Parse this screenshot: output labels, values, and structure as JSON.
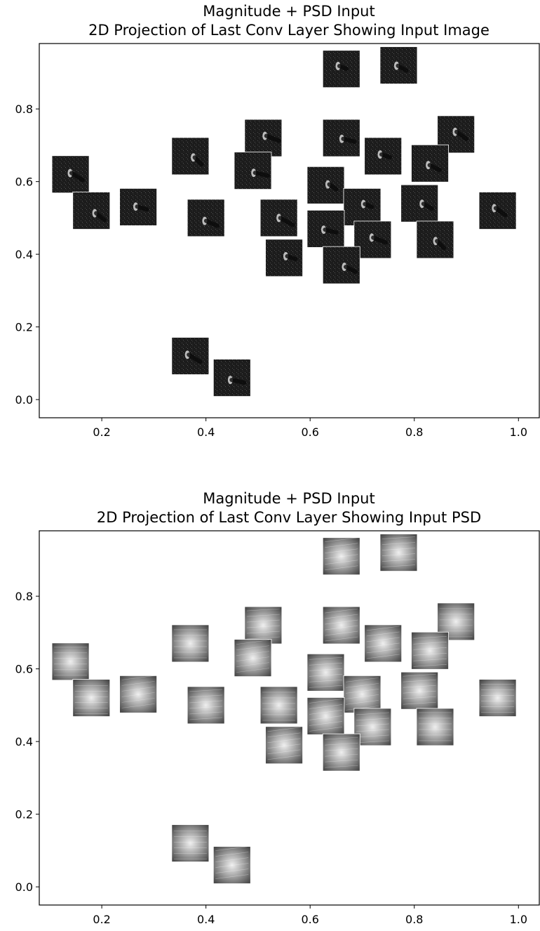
{
  "chart_data": [
    {
      "type": "scatter",
      "title": "Magnitude + PSD Input",
      "subtitle": "2D Projection of Last Conv Layer Showing Input Image",
      "xlabel": "",
      "ylabel": "",
      "xlim": [
        0.08,
        1.04
      ],
      "ylim": [
        -0.05,
        0.98
      ],
      "x_ticks": [
        "0.2",
        "0.4",
        "0.6",
        "0.8",
        "1.0"
      ],
      "y_ticks": [
        "0.0",
        "0.2",
        "0.4",
        "0.6",
        "0.8"
      ],
      "grid": false,
      "marker": "image-thumbnail",
      "thumbnail_style": "dark",
      "points": [
        {
          "x": 0.66,
          "y": 0.91
        },
        {
          "x": 0.77,
          "y": 0.92
        },
        {
          "x": 0.88,
          "y": 0.73
        },
        {
          "x": 0.66,
          "y": 0.72
        },
        {
          "x": 0.51,
          "y": 0.72
        },
        {
          "x": 0.37,
          "y": 0.67
        },
        {
          "x": 0.74,
          "y": 0.67
        },
        {
          "x": 0.83,
          "y": 0.65
        },
        {
          "x": 0.14,
          "y": 0.62
        },
        {
          "x": 0.49,
          "y": 0.63
        },
        {
          "x": 0.63,
          "y": 0.59
        },
        {
          "x": 0.18,
          "y": 0.52
        },
        {
          "x": 0.27,
          "y": 0.53
        },
        {
          "x": 0.4,
          "y": 0.5
        },
        {
          "x": 0.54,
          "y": 0.5
        },
        {
          "x": 0.7,
          "y": 0.53
        },
        {
          "x": 0.81,
          "y": 0.54
        },
        {
          "x": 0.96,
          "y": 0.52
        },
        {
          "x": 0.63,
          "y": 0.47
        },
        {
          "x": 0.72,
          "y": 0.44
        },
        {
          "x": 0.84,
          "y": 0.44
        },
        {
          "x": 0.55,
          "y": 0.39
        },
        {
          "x": 0.66,
          "y": 0.37
        },
        {
          "x": 0.37,
          "y": 0.12
        },
        {
          "x": 0.45,
          "y": 0.06
        }
      ]
    },
    {
      "type": "scatter",
      "title": "Magnitude + PSD Input",
      "subtitle": "2D Projection of Last Conv Layer Showing Input PSD",
      "xlabel": "",
      "ylabel": "",
      "xlim": [
        0.08,
        1.04
      ],
      "ylim": [
        -0.05,
        0.98
      ],
      "x_ticks": [
        "0.2",
        "0.4",
        "0.6",
        "0.8",
        "1.0"
      ],
      "y_ticks": [
        "0.0",
        "0.2",
        "0.4",
        "0.6",
        "0.8"
      ],
      "grid": false,
      "marker": "image-thumbnail",
      "thumbnail_style": "psd",
      "points": [
        {
          "x": 0.66,
          "y": 0.91
        },
        {
          "x": 0.77,
          "y": 0.92
        },
        {
          "x": 0.88,
          "y": 0.73
        },
        {
          "x": 0.66,
          "y": 0.72
        },
        {
          "x": 0.51,
          "y": 0.72
        },
        {
          "x": 0.37,
          "y": 0.67
        },
        {
          "x": 0.74,
          "y": 0.67
        },
        {
          "x": 0.83,
          "y": 0.65
        },
        {
          "x": 0.14,
          "y": 0.62
        },
        {
          "x": 0.49,
          "y": 0.63
        },
        {
          "x": 0.63,
          "y": 0.59
        },
        {
          "x": 0.18,
          "y": 0.52
        },
        {
          "x": 0.27,
          "y": 0.53
        },
        {
          "x": 0.4,
          "y": 0.5
        },
        {
          "x": 0.54,
          "y": 0.5
        },
        {
          "x": 0.7,
          "y": 0.53
        },
        {
          "x": 0.81,
          "y": 0.54
        },
        {
          "x": 0.96,
          "y": 0.52
        },
        {
          "x": 0.63,
          "y": 0.47
        },
        {
          "x": 0.72,
          "y": 0.44
        },
        {
          "x": 0.84,
          "y": 0.44
        },
        {
          "x": 0.55,
          "y": 0.39
        },
        {
          "x": 0.66,
          "y": 0.37
        },
        {
          "x": 0.37,
          "y": 0.12
        },
        {
          "x": 0.45,
          "y": 0.06
        }
      ]
    }
  ]
}
